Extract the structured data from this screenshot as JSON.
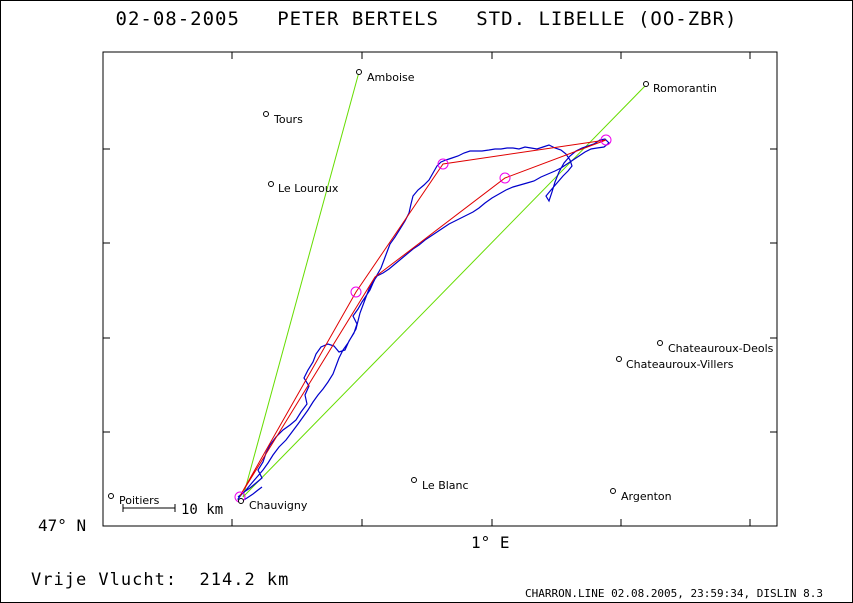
{
  "title": "02-08-2005   PETER BERTELS   STD. LIBELLE (OO-ZBR)",
  "distance_label": "Vrije Vlucht:  214.2 km",
  "footer": "CHARRON.LINE 02.08.2005, 23:59:34, DISLIN 8.3",
  "axes": {
    "lat_label": "47° N",
    "lon_label": "1° E"
  },
  "scale_bar": {
    "label": "10 km"
  },
  "places": [
    {
      "id": "amboise",
      "name": "Amboise"
    },
    {
      "id": "romorantin",
      "name": "Romorantin"
    },
    {
      "id": "tours",
      "name": "Tours"
    },
    {
      "id": "le-louroux",
      "name": "Le Louroux"
    },
    {
      "id": "chateauroux-deols",
      "name": "Chateauroux-Deols"
    },
    {
      "id": "chateauroux-villers",
      "name": "Chateauroux-Villers"
    },
    {
      "id": "le-blanc",
      "name": "Le Blanc"
    },
    {
      "id": "argenton",
      "name": "Argenton"
    },
    {
      "id": "poitiers",
      "name": "Poitiers"
    },
    {
      "id": "chauvigny",
      "name": "Chauvigny"
    }
  ],
  "colors": {
    "track": "#0000cc",
    "task": "#e00000",
    "sector": "#66dd00",
    "turnpoint": "#ee00ee"
  }
}
